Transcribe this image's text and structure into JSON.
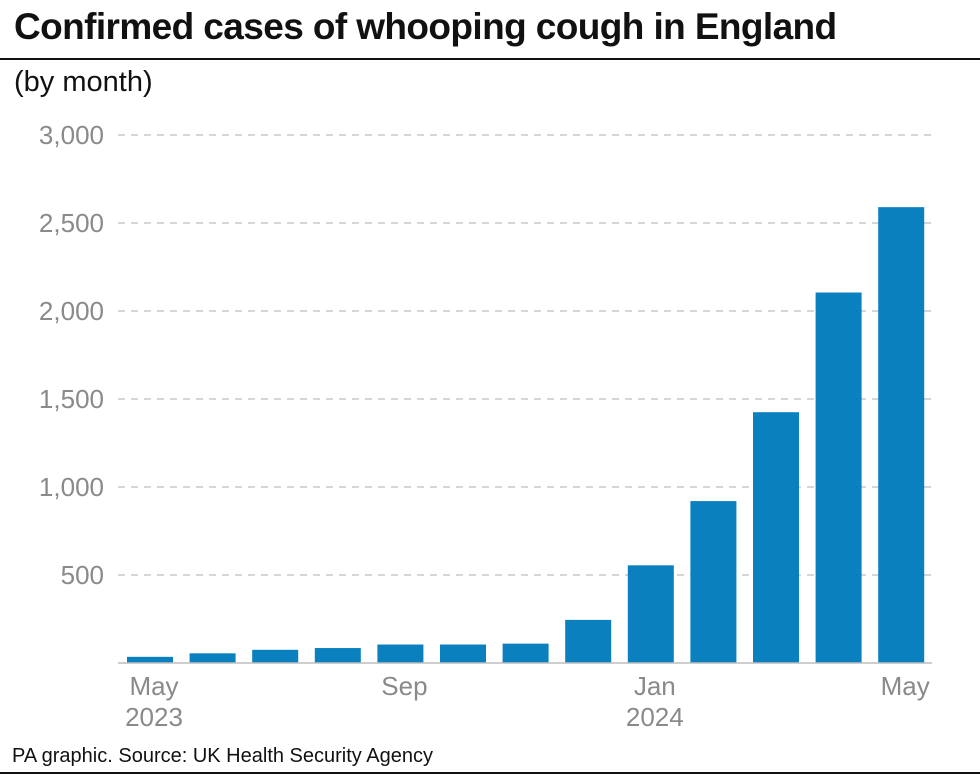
{
  "title": "Confirmed cases of whooping cough in England",
  "subtitle": "(by month)",
  "source": "PA graphic. Source: UK Health Security Agency",
  "colors": {
    "bar": "#0a80bf",
    "grid": "#c8c8c8",
    "tick": "#8a8a8a",
    "text": "#111111"
  },
  "chart_data": {
    "type": "bar",
    "categories": [
      "May 2023",
      "Jun 2023",
      "Jul 2023",
      "Aug 2023",
      "Sep 2023",
      "Oct 2023",
      "Nov 2023",
      "Dec 2023",
      "Jan 2024",
      "Feb 2024",
      "Mar 2024",
      "Apr 2024",
      "May 2024"
    ],
    "values": [
      35,
      55,
      75,
      85,
      105,
      105,
      110,
      245,
      555,
      920,
      1425,
      2105,
      2590
    ],
    "ylim": [
      0,
      3000
    ],
    "yticks": [
      {
        "value": 500,
        "label": "500"
      },
      {
        "value": 1000,
        "label": "1,000"
      },
      {
        "value": 1500,
        "label": "1,500"
      },
      {
        "value": 2000,
        "label": "2,000"
      },
      {
        "value": 2500,
        "label": "2,500"
      },
      {
        "value": 3000,
        "label": "3,000"
      }
    ],
    "xticks": [
      {
        "index": 0,
        "lines": [
          "May",
          "2023"
        ]
      },
      {
        "index": 4,
        "lines": [
          "Sep"
        ]
      },
      {
        "index": 8,
        "lines": [
          "Jan",
          "2024"
        ]
      },
      {
        "index": 12,
        "lines": [
          "May"
        ]
      }
    ],
    "grid": true,
    "legend": "none"
  }
}
